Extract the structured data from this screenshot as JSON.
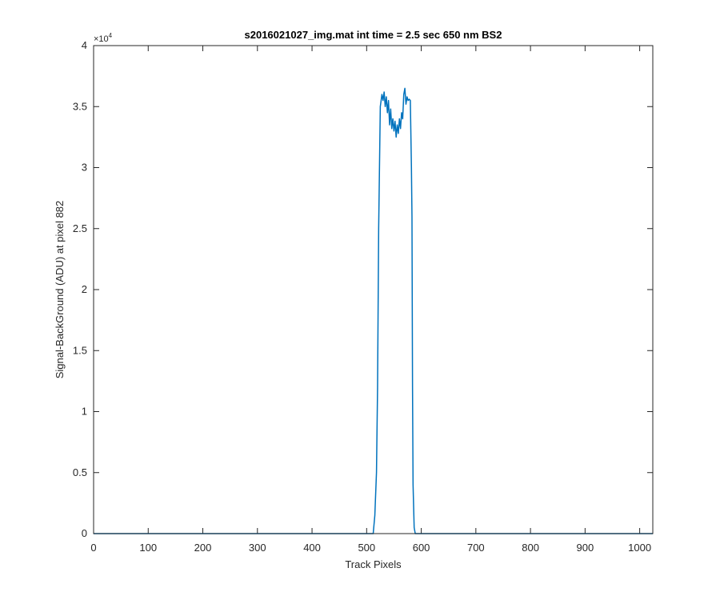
{
  "chart_data": {
    "type": "line",
    "title": "s2016021027_img.mat int time = 2.5 sec  650 nm BS2",
    "xlabel": "Track Pixels",
    "ylabel": "Signal-BackGround (ADU) at pixel 882",
    "xlim": [
      0,
      1024
    ],
    "ylim": [
      0,
      40000
    ],
    "x_ticks": [
      0,
      100,
      200,
      300,
      400,
      500,
      600,
      700,
      800,
      900,
      1000
    ],
    "y_ticks": [
      0,
      0.5,
      1,
      1.5,
      2,
      2.5,
      3,
      3.5,
      4
    ],
    "y_tick_labels": [
      "0",
      "0.5",
      "1",
      "1.5",
      "2",
      "2.5",
      "3",
      "3.5",
      "4"
    ],
    "y_exponent_label": "×10",
    "y_exponent_power": "4",
    "y_multiplier": 10000,
    "grid": false,
    "series": [
      {
        "color": "#0072BD",
        "x": [
          0,
          100,
          200,
          300,
          400,
          500,
          512,
          515,
          518,
          520,
          522,
          525,
          528,
          530,
          532,
          534,
          536,
          538,
          540,
          542,
          544,
          546,
          548,
          550,
          552,
          554,
          556,
          558,
          560,
          562,
          564,
          566,
          568,
          570,
          572,
          574,
          576,
          578,
          580,
          582,
          583,
          584,
          585,
          587,
          589,
          600,
          700,
          800,
          900,
          1024
        ],
        "y": [
          0,
          0,
          0,
          0,
          0,
          0,
          0,
          1500,
          5000,
          12000,
          25000,
          35000,
          36000,
          35500,
          36200,
          35000,
          35800,
          34500,
          35500,
          33500,
          34800,
          33200,
          34000,
          33000,
          33800,
          32500,
          33500,
          32800,
          34000,
          33200,
          34500,
          34000,
          36000,
          36500,
          35200,
          35800,
          35500,
          35600,
          35500,
          30000,
          26000,
          12000,
          4000,
          500,
          0,
          0,
          0,
          0,
          0,
          0
        ]
      }
    ]
  }
}
